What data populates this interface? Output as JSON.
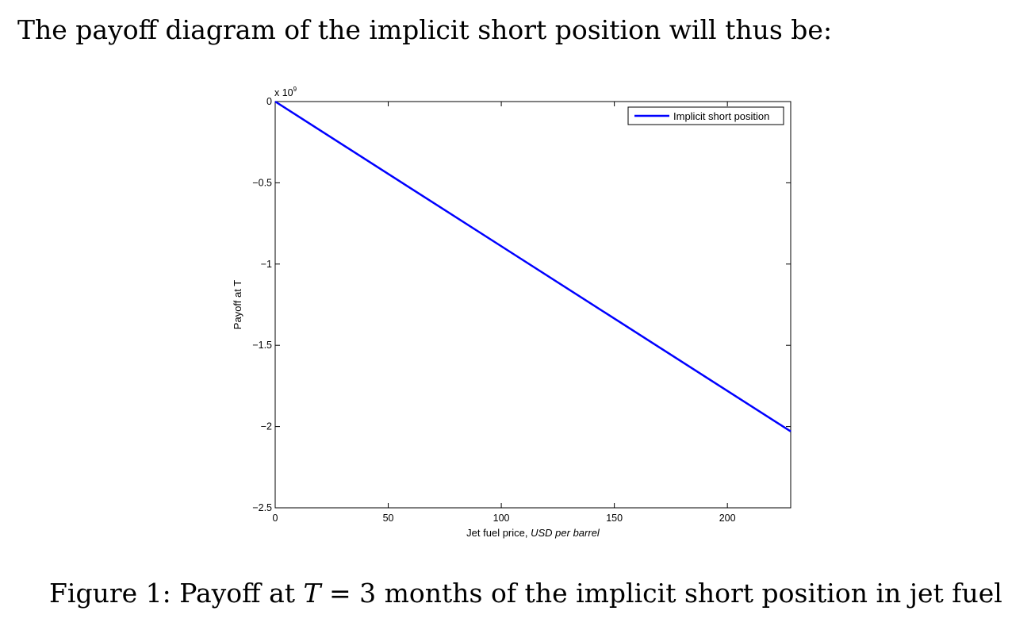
{
  "document": {
    "intro_text": "The payoff diagram of the implicit short position will thus be:",
    "caption": {
      "prefix": "Figure 1: Payoff at ",
      "variable": "T",
      "suffix": " = 3 months of the implicit short position in jet fuel"
    }
  },
  "chart_data": {
    "type": "line",
    "xlabel_plain": "Jet fuel price, ",
    "xlabel_italic": "USD per barrel",
    "ylabel": "Payoff at T",
    "y_multiplier": "x 10",
    "y_multiplier_exp": "9",
    "xlim": [
      0,
      228
    ],
    "ylim": [
      -2.5,
      0
    ],
    "x_ticks": [
      0,
      50,
      100,
      150,
      200
    ],
    "x_tick_labels": [
      "0",
      "50",
      "100",
      "150",
      "200"
    ],
    "y_ticks": [
      0,
      -0.5,
      -1,
      -1.5,
      -2,
      -2.5
    ],
    "y_tick_labels": [
      "0",
      "−0.5",
      "−1",
      "−1.5",
      "−2",
      "−2.5"
    ],
    "grid": false,
    "legend_position": "top-right",
    "series": [
      {
        "name": "Implicit short position",
        "color": "#0000ff",
        "x": [
          0,
          228
        ],
        "y": [
          0,
          -2.03
        ]
      }
    ]
  }
}
